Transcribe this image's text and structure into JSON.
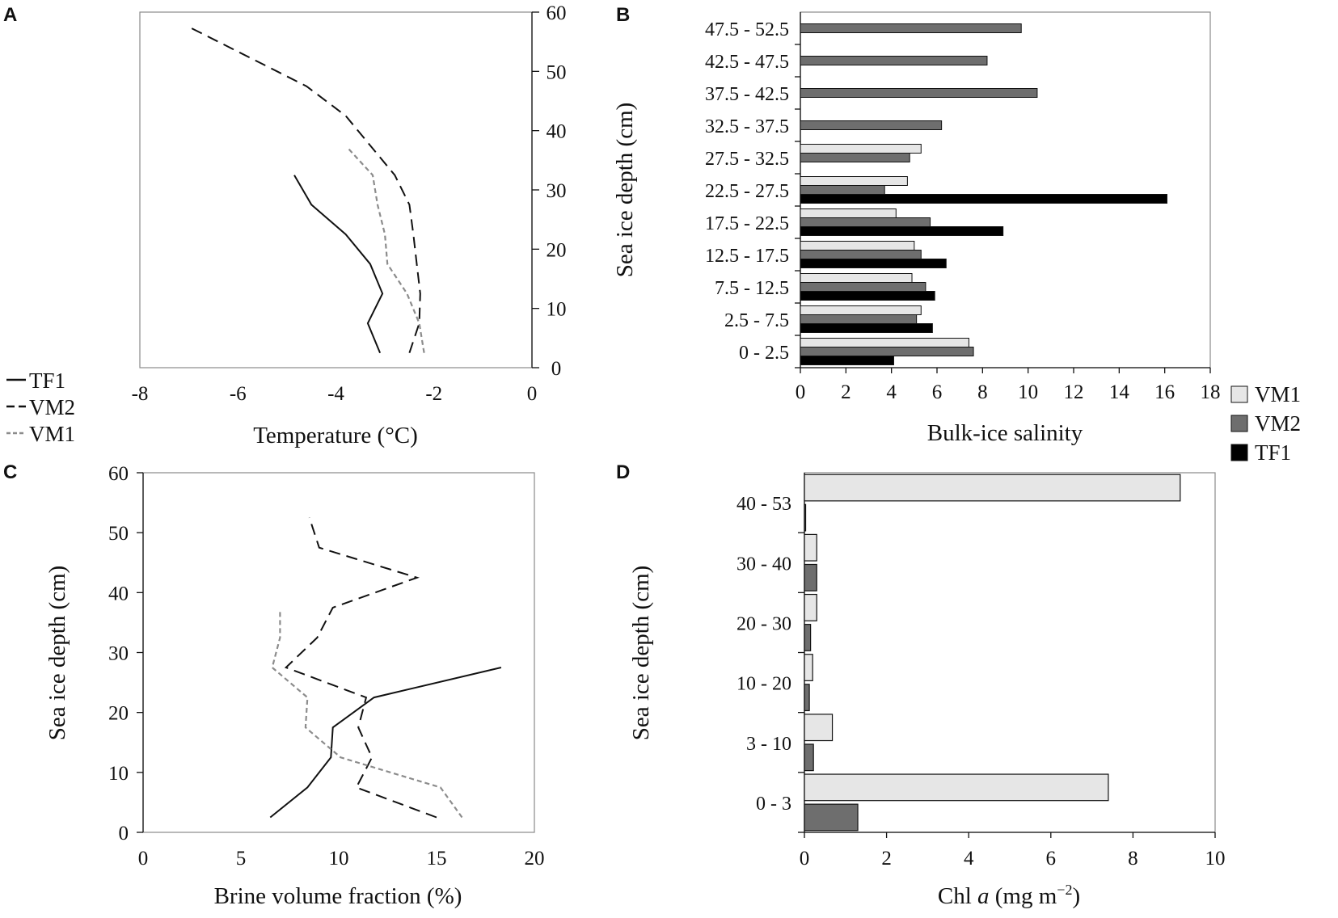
{
  "colors": {
    "VM1": "#e6e6e6",
    "VM2": "#6e6e6e",
    "TF1": "#000000",
    "VM1_line": "#8c8c8c",
    "line_dark": "#111111"
  },
  "chart_data": [
    {
      "panel": "A",
      "type": "line",
      "xlabel": "Temperature (°C)",
      "ylabel": "",
      "xlim": [
        -8,
        0
      ],
      "ylim": [
        0,
        60
      ],
      "xticks": [
        -8,
        -6,
        -4,
        -2,
        0
      ],
      "yticks": [
        0,
        10,
        20,
        30,
        40,
        50,
        60
      ],
      "yaxis_side": "right",
      "legend": [
        {
          "name": "TF1",
          "style": "solid"
        },
        {
          "name": "VM2",
          "style": "dashed"
        },
        {
          "name": "VM1",
          "style": "dotted"
        }
      ],
      "series": [
        {
          "name": "TF1",
          "style": "solid",
          "points": [
            [
              -3.1,
              2.5
            ],
            [
              -3.35,
              7.5
            ],
            [
              -3.05,
              12.5
            ],
            [
              -3.3,
              17.5
            ],
            [
              -3.8,
              22.5
            ],
            [
              -4.5,
              27.5
            ],
            [
              -4.85,
              32.5
            ]
          ]
        },
        {
          "name": "VM2",
          "style": "dashed",
          "points": [
            [
              -2.5,
              2.5
            ],
            [
              -2.3,
              7.5
            ],
            [
              -2.28,
              12.5
            ],
            [
              -2.35,
              17.5
            ],
            [
              -2.42,
              22.5
            ],
            [
              -2.5,
              27.5
            ],
            [
              -2.8,
              32.5
            ],
            [
              -3.3,
              37.5
            ],
            [
              -3.8,
              42.5
            ],
            [
              -4.6,
              47.5
            ],
            [
              -5.8,
              52.5
            ],
            [
              -7.0,
              57.5
            ]
          ]
        },
        {
          "name": "VM1",
          "style": "dotted",
          "points": [
            [
              -2.2,
              2.5
            ],
            [
              -2.3,
              7.5
            ],
            [
              -2.55,
              12.5
            ],
            [
              -2.95,
              17.5
            ],
            [
              -3.0,
              22.5
            ],
            [
              -3.15,
              27.5
            ],
            [
              -3.25,
              32.5
            ],
            [
              -3.75,
              37.0
            ]
          ]
        }
      ]
    },
    {
      "panel": "B",
      "type": "bar",
      "orientation": "horizontal",
      "xlabel": "Bulk-ice salinity",
      "ylabel": "Sea ice depth (cm)",
      "xlim": [
        0,
        18
      ],
      "xticks": [
        0,
        2,
        4,
        6,
        8,
        10,
        12,
        14,
        16,
        18
      ],
      "categories": [
        "0 - 2.5",
        "2.5 - 7.5",
        "7.5 - 12.5",
        "12.5 - 17.5",
        "17.5 - 22.5",
        "22.5 - 27.5",
        "27.5 - 32.5",
        "32.5 - 37.5",
        "37.5 - 42.5",
        "42.5 - 47.5",
        "47.5 - 52.5"
      ],
      "legend": [
        "VM1",
        "VM2",
        "TF1"
      ],
      "series": [
        {
          "name": "VM1",
          "values": [
            7.4,
            5.3,
            4.9,
            5.0,
            4.2,
            4.7,
            5.3,
            null,
            null,
            null,
            null
          ]
        },
        {
          "name": "VM2",
          "values": [
            7.6,
            5.1,
            5.5,
            5.3,
            5.7,
            3.7,
            4.8,
            6.2,
            10.4,
            8.2,
            9.7
          ]
        },
        {
          "name": "TF1",
          "values": [
            4.1,
            5.8,
            5.9,
            6.4,
            8.9,
            16.1,
            null,
            null,
            null,
            null,
            null
          ]
        }
      ]
    },
    {
      "panel": "C",
      "type": "line",
      "xlabel": "Brine volume fraction (%)",
      "ylabel": "Sea ice depth (cm)",
      "xlim": [
        0,
        20
      ],
      "ylim": [
        0,
        60
      ],
      "xticks": [
        0,
        5,
        10,
        15,
        20
      ],
      "yticks": [
        0,
        10,
        20,
        30,
        40,
        50,
        60
      ],
      "series": [
        {
          "name": "TF1",
          "style": "solid",
          "points": [
            [
              6.5,
              2.5
            ],
            [
              8.4,
              7.5
            ],
            [
              9.6,
              12.5
            ],
            [
              9.7,
              17.5
            ],
            [
              11.8,
              22.5
            ],
            [
              18.3,
              27.5
            ]
          ]
        },
        {
          "name": "VM2",
          "style": "dashed",
          "points": [
            [
              15.0,
              2.5
            ],
            [
              10.9,
              7.5
            ],
            [
              11.7,
              12.5
            ],
            [
              11.0,
              17.5
            ],
            [
              11.4,
              22.5
            ],
            [
              7.3,
              27.5
            ],
            [
              8.9,
              32.5
            ],
            [
              9.7,
              37.5
            ],
            [
              14.0,
              42.5
            ],
            [
              9.0,
              47.5
            ],
            [
              8.5,
              52.5
            ]
          ]
        },
        {
          "name": "VM1",
          "style": "dotted",
          "points": [
            [
              16.3,
              2.5
            ],
            [
              15.2,
              7.5
            ],
            [
              10.1,
              12.5
            ],
            [
              8.3,
              17.5
            ],
            [
              8.4,
              22.5
            ],
            [
              6.6,
              27.5
            ],
            [
              7.0,
              32.5
            ],
            [
              7.0,
              37.0
            ]
          ]
        }
      ]
    },
    {
      "panel": "D",
      "type": "bar",
      "orientation": "horizontal",
      "xlabel": "Chl a (mg m−2)",
      "ylabel": "Sea ice depth (cm)",
      "xlim": [
        0,
        10
      ],
      "xticks": [
        0,
        2,
        4,
        6,
        8,
        10
      ],
      "categories": [
        "0 - 3",
        "3 - 10",
        "10 - 20",
        "20 - 30",
        "30 - 40",
        "40 - 53"
      ],
      "bars_from_bottom": [
        {
          "series": "VM2",
          "value": 1.3
        },
        {
          "series": "VM1",
          "value": 7.4
        },
        {
          "series": "VM2",
          "value": 0.22
        },
        {
          "series": "VM1",
          "value": 0.68
        },
        {
          "series": "VM2",
          "value": 0.12
        },
        {
          "series": "VM1",
          "value": 0.2
        },
        {
          "series": "VM2",
          "value": 0.15
        },
        {
          "series": "VM1",
          "value": 0.3
        },
        {
          "series": "VM2",
          "value": 0.3
        },
        {
          "series": "VM1",
          "value": 0.3
        },
        {
          "series": "VM2",
          "value": 0.03
        },
        {
          "series": "VM1",
          "value": 9.15
        }
      ]
    }
  ]
}
